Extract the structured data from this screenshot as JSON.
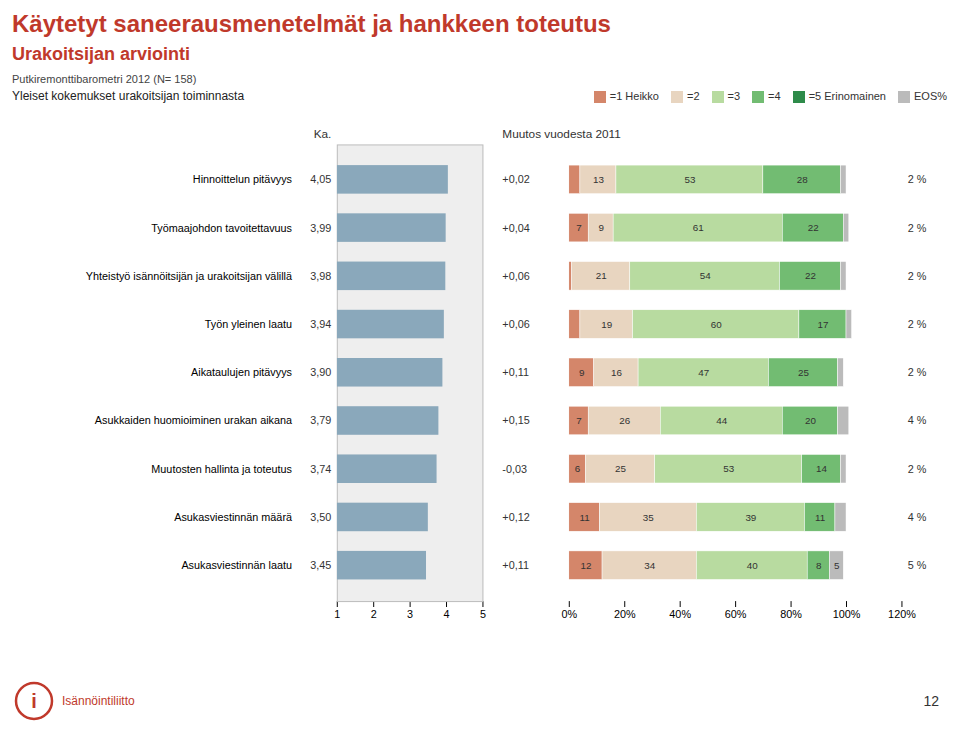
{
  "title": "Käytetyt saneerausmenetelmät ja hankkeen toteutus",
  "subtitle": "Urakoitsijan arviointi",
  "annotations": [
    "Putkiremonttibarometri 2012 (N= 158)",
    "Yleiset kokemukset urakoitsijan toiminnasta",
    "12",
    "i",
    "Isännöintiliitto"
  ],
  "chart_data": [
    {
      "type": "bar",
      "orientation": "horizontal",
      "title": "Ka.",
      "categories": [
        "Hinnoittelun pitävyys",
        "Työmaajohdon tavoitettavuus",
        "Yhteistyö isännöitsijän ja urakoitsijan välillä",
        "Työn yleinen laatu",
        "Aikataulujen pitävyys",
        "Asukkaiden huomioiminen urakan aikana",
        "Muutosten hallinta ja toteutus",
        "Asukasviestinnän määrä",
        "Asukasviestinnän laatu"
      ],
      "values": [
        4.05,
        3.99,
        3.98,
        3.94,
        3.9,
        3.79,
        3.74,
        3.5,
        3.45
      ],
      "value_labels": [
        "4,05",
        "3,99",
        "3,98",
        "3,94",
        "3,90",
        "3,79",
        "3,74",
        "3,50",
        "3,45"
      ],
      "data_labels": true,
      "color": "#8aa8bb",
      "xlim": [
        1,
        5
      ],
      "xticks": [
        1,
        2,
        3,
        4,
        5
      ],
      "grid": false
    },
    {
      "type": "bar",
      "orientation": "horizontal",
      "stacked": true,
      "categories": [
        "Hinnoittelun pitävyys",
        "Työmaajohdon tavoitettavuus",
        "Yhteistyö isännöitsijän ja urakoitsijan välillä",
        "Työn yleinen laatu",
        "Aikataulujen pitävyys",
        "Asukkaiden huomioiminen urakan aikana",
        "Muutosten hallinta ja toteutus",
        "Asukasviestinnän määrä",
        "Asukasviestinnän laatu"
      ],
      "series": [
        {
          "name": "=1 Heikko",
          "color": "#d4866a",
          "values": [
            4,
            7,
            1,
            4,
            9,
            7,
            6,
            11,
            12
          ],
          "value_labels": [
            null,
            "7",
            null,
            null,
            "9",
            "7",
            "6",
            "11",
            "12"
          ]
        },
        {
          "name": "=2",
          "color": "#e8d5c0",
          "values": [
            13,
            9,
            21,
            19,
            16,
            26,
            25,
            35,
            34
          ],
          "value_labels": [
            "13",
            "9",
            "21",
            "19",
            "16",
            "26",
            "25",
            "35",
            "34"
          ]
        },
        {
          "name": "=3",
          "color": "#b8dba0",
          "values": [
            53,
            61,
            54,
            60,
            47,
            44,
            53,
            39,
            40
          ],
          "value_labels": [
            "53",
            "61",
            "54",
            "60",
            "47",
            "44",
            "53",
            "39",
            "40"
          ]
        },
        {
          "name": "=4",
          "color": "#72bc72",
          "values": [
            28,
            22,
            22,
            17,
            25,
            20,
            14,
            11,
            8
          ],
          "value_labels": [
            "28",
            "22",
            "22",
            "17",
            "25",
            "20",
            "14",
            "11",
            "8"
          ]
        },
        {
          "name": "=5 Erinomainen",
          "color": "#2e8b4a",
          "values": [
            null,
            null,
            null,
            null,
            null,
            null,
            null,
            null,
            null
          ],
          "value_labels": [
            null,
            null,
            null,
            null,
            null,
            null,
            null,
            null,
            null
          ]
        },
        {
          "name": "EOS%",
          "color": "#bbbbbb",
          "values": [
            2,
            2,
            2,
            2,
            2,
            4,
            2,
            4,
            5
          ],
          "value_labels": [
            null,
            null,
            null,
            null,
            null,
            null,
            null,
            null,
            "5"
          ]
        }
      ],
      "data_labels": true,
      "eos_column": {
        "values": [
          2,
          2,
          2,
          2,
          2,
          4,
          2,
          4,
          5
        ],
        "value_labels": [
          "2 %",
          "2 %",
          "2 %",
          "2 %",
          "2 %",
          "4 %",
          "2 %",
          "4 %",
          "5 %"
        ]
      },
      "change": {
        "label": "Muutos vuodesta 2011",
        "values": [
          0.02,
          0.04,
          0.06,
          0.06,
          0.11,
          0.15,
          -0.03,
          0.12,
          0.11
        ],
        "value_labels": [
          "+0,02",
          "+0,04",
          "+0,06",
          "+0,06",
          "+0,11",
          "+0,15",
          "-0,03",
          "+0,12",
          "+0,11"
        ]
      },
      "xlim": [
        0,
        120
      ],
      "xticks": [
        {
          "value": 0,
          "label": "0%"
        },
        {
          "value": 20,
          "label": "20%"
        },
        {
          "value": 40,
          "label": "40%"
        },
        {
          "value": 60,
          "label": "60%"
        },
        {
          "value": 80,
          "label": "80%"
        },
        {
          "value": 100,
          "label": "100%"
        },
        {
          "value": 120,
          "label": "120%"
        }
      ],
      "legend": "top right",
      "tick_labels": "x",
      "grid": false
    }
  ]
}
